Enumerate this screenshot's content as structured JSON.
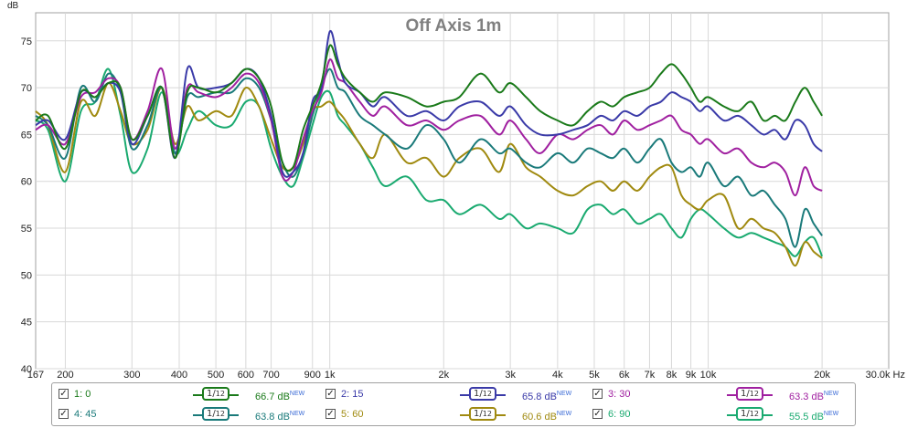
{
  "colors": {
    "background": "#ffffff",
    "plot_border": "#a0a0a0",
    "grid": "#d8d8d8",
    "axis_text": "#222222",
    "title": "#808080"
  },
  "chart_data": {
    "type": "line",
    "title": "Off Axis 1m",
    "ylabel": "dB",
    "xunit": "Hz",
    "xscale": "log",
    "xlim": [
      167,
      30000
    ],
    "ylim": [
      40,
      78
    ],
    "grid": true,
    "legend_position": "bottom",
    "x_ticks": [
      167,
      200,
      300,
      400,
      500,
      600,
      700,
      900,
      1000,
      2000,
      3000,
      4000,
      5000,
      6000,
      7000,
      8000,
      9000,
      10000,
      20000,
      30000
    ],
    "x_tick_labels": [
      "167",
      "200",
      "300",
      "400",
      "500",
      "600",
      "700",
      "900",
      "1k",
      "2k",
      "3k",
      "4k",
      "5k",
      "6k",
      "7k",
      "8k",
      "9k",
      "10k",
      "20k",
      "30.0k Hz"
    ],
    "y_ticks": [
      40,
      45,
      50,
      55,
      60,
      65,
      70,
      75
    ],
    "x": [
      167,
      180,
      200,
      220,
      240,
      260,
      280,
      300,
      330,
      360,
      390,
      420,
      450,
      500,
      550,
      600,
      650,
      700,
      750,
      800,
      850,
      900,
      950,
      1000,
      1050,
      1100,
      1200,
      1300,
      1400,
      1600,
      1800,
      2000,
      2200,
      2500,
      2800,
      3000,
      3300,
      3600,
      4000,
      4400,
      4800,
      5200,
      5600,
      6000,
      6500,
      7000,
      7500,
      8000,
      8500,
      9000,
      9500,
      10000,
      11000,
      12000,
      13000,
      14000,
      15000,
      16000,
      17000,
      18000,
      19000,
      20000
    ],
    "series": [
      {
        "name": "1: 0",
        "color": "#1a7a1a",
        "smoothing": "1/12",
        "level": "66.7 dB",
        "badge": "NEW",
        "values": [
          66.5,
          67.0,
          63.5,
          69.5,
          69.0,
          70.5,
          70.0,
          64.5,
          67.0,
          70.0,
          62.5,
          69.5,
          70.0,
          69.5,
          70.5,
          72.0,
          71.0,
          68.0,
          62.0,
          61.5,
          65.5,
          68.0,
          70.5,
          74.5,
          72.5,
          71.0,
          69.5,
          68.5,
          69.5,
          69.0,
          68.0,
          68.5,
          69.0,
          71.5,
          69.5,
          70.5,
          69.0,
          67.5,
          66.5,
          66.0,
          67.5,
          68.5,
          68.0,
          69.0,
          69.5,
          70.0,
          71.5,
          72.5,
          71.5,
          70.0,
          68.5,
          69.0,
          68.0,
          67.5,
          68.5,
          66.5,
          67.0,
          66.5,
          68.5,
          70.0,
          68.5,
          67.0
        ]
      },
      {
        "name": "2: 15",
        "color": "#3a3aa8",
        "smoothing": "1/12",
        "level": "65.8 dB",
        "badge": "NEW",
        "values": [
          66.0,
          66.5,
          64.5,
          69.5,
          69.0,
          70.5,
          69.5,
          64.0,
          67.0,
          70.0,
          62.5,
          72.0,
          70.0,
          70.0,
          70.5,
          72.0,
          71.0,
          67.0,
          61.0,
          61.0,
          63.0,
          68.5,
          70.0,
          76.0,
          73.0,
          70.5,
          69.5,
          68.0,
          69.0,
          67.0,
          67.5,
          66.5,
          68.0,
          68.5,
          67.0,
          68.0,
          66.0,
          65.0,
          65.0,
          65.5,
          66.0,
          67.0,
          66.5,
          67.5,
          67.0,
          68.0,
          68.5,
          69.5,
          69.0,
          68.5,
          67.5,
          68.0,
          66.5,
          67.0,
          66.0,
          65.0,
          65.5,
          64.5,
          66.5,
          66.0,
          64.0,
          63.2
        ]
      },
      {
        "name": "3: 30",
        "color": "#a020a0",
        "smoothing": "1/12",
        "level": "63.3 dB",
        "badge": "NEW",
        "values": [
          65.5,
          66.0,
          64.0,
          69.0,
          69.5,
          71.0,
          70.0,
          64.5,
          67.5,
          72.0,
          63.5,
          70.0,
          69.5,
          69.0,
          70.0,
          71.5,
          70.5,
          66.5,
          60.5,
          61.0,
          64.5,
          67.5,
          69.5,
          73.0,
          71.0,
          70.5,
          68.5,
          67.0,
          68.0,
          66.0,
          66.5,
          65.5,
          66.5,
          67.0,
          65.0,
          66.5,
          64.5,
          63.0,
          65.0,
          64.5,
          65.5,
          66.0,
          65.0,
          66.5,
          65.5,
          66.0,
          66.5,
          67.0,
          65.5,
          65.0,
          64.0,
          64.5,
          63.0,
          63.5,
          62.0,
          61.5,
          62.0,
          61.0,
          58.5,
          61.5,
          59.5,
          59.0
        ]
      },
      {
        "name": "4: 45",
        "color": "#1a7a7a",
        "smoothing": "1/12",
        "level": "63.8 dB",
        "badge": "NEW",
        "values": [
          67.0,
          66.0,
          62.5,
          70.0,
          68.5,
          71.5,
          69.5,
          63.5,
          66.0,
          70.0,
          63.0,
          69.0,
          69.0,
          69.5,
          69.5,
          71.0,
          70.0,
          66.5,
          62.0,
          60.5,
          63.0,
          67.0,
          70.0,
          72.0,
          70.0,
          69.5,
          67.0,
          66.0,
          65.0,
          63.5,
          66.0,
          64.5,
          62.0,
          64.5,
          63.0,
          63.5,
          62.0,
          61.5,
          63.0,
          62.0,
          63.5,
          63.0,
          62.5,
          63.5,
          62.0,
          63.5,
          64.5,
          62.0,
          61.0,
          61.5,
          60.5,
          62.0,
          59.5,
          60.5,
          58.5,
          59.0,
          57.5,
          56.0,
          53.0,
          57.0,
          55.5,
          54.2
        ]
      },
      {
        "name": "5: 60",
        "color": "#a08a10",
        "smoothing": "1/12",
        "level": "60.6 dB",
        "badge": "NEW",
        "values": [
          67.5,
          66.0,
          61.0,
          68.5,
          67.0,
          70.5,
          67.5,
          64.0,
          65.5,
          70.0,
          64.0,
          68.0,
          66.5,
          67.5,
          67.0,
          70.0,
          68.0,
          64.5,
          61.5,
          61.5,
          64.0,
          67.5,
          68.0,
          68.5,
          67.5,
          66.5,
          64.0,
          62.5,
          65.0,
          62.0,
          62.5,
          60.5,
          62.5,
          63.5,
          61.0,
          64.0,
          61.5,
          60.5,
          59.0,
          58.5,
          59.5,
          60.0,
          59.0,
          60.0,
          59.0,
          60.5,
          61.5,
          61.5,
          58.5,
          57.5,
          57.0,
          58.0,
          58.5,
          55.0,
          56.0,
          55.0,
          54.5,
          53.0,
          51.0,
          53.5,
          52.5,
          51.8
        ]
      },
      {
        "name": "6: 90",
        "color": "#1aaa70",
        "smoothing": "1/12",
        "level": "55.5 dB",
        "badge": "NEW",
        "values": [
          66.5,
          65.5,
          60.0,
          67.5,
          68.5,
          72.0,
          67.0,
          61.0,
          63.5,
          69.5,
          63.0,
          65.5,
          67.5,
          66.0,
          66.0,
          68.5,
          68.0,
          63.5,
          60.5,
          59.5,
          62.5,
          66.0,
          69.0,
          69.5,
          67.0,
          66.0,
          64.0,
          61.5,
          59.5,
          60.5,
          58.0,
          58.0,
          56.5,
          57.5,
          56.0,
          56.5,
          55.0,
          55.5,
          55.0,
          54.5,
          57.0,
          57.5,
          56.5,
          57.0,
          55.5,
          56.0,
          56.5,
          55.0,
          54.0,
          56.0,
          57.0,
          56.5,
          55.0,
          54.0,
          54.5,
          54.0,
          53.5,
          53.0,
          52.0,
          53.5,
          54.0,
          52.0
        ]
      }
    ]
  },
  "legend": {
    "smoothing_label_prefix": "1",
    "smoothing_label_suffix": "12",
    "checkbox_mark": "✓"
  }
}
